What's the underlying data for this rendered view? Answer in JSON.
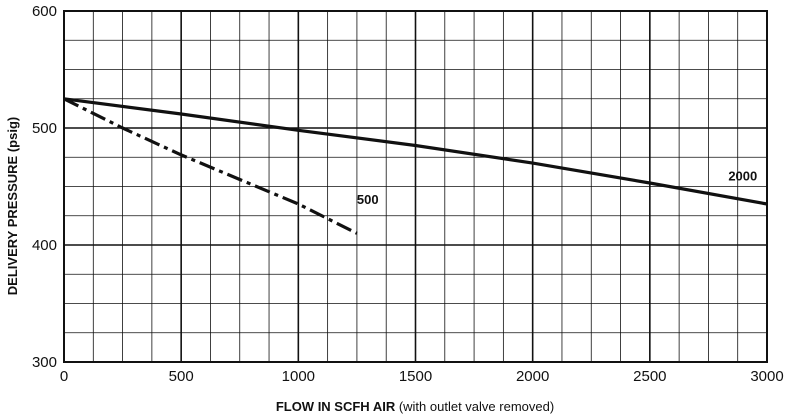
{
  "chart_data": {
    "type": "line",
    "xlabel_bold": "FLOW IN SCFH AIR",
    "xlabel_note": " (with outlet valve removed)",
    "ylabel": "DELIVERY PRESSURE (psig)",
    "xlim": [
      0,
      3000
    ],
    "ylim": [
      300,
      600
    ],
    "x_ticks": [
      0,
      500,
      1000,
      1500,
      2000,
      2500,
      3000
    ],
    "y_ticks": [
      300,
      400,
      500,
      600
    ],
    "x_minor_step": 125,
    "y_minor_step": 25,
    "grid": true,
    "series": [
      {
        "name": "2000",
        "style": "solid",
        "x": [
          0,
          500,
          1000,
          1500,
          2000,
          2500,
          3000
        ],
        "y": [
          525,
          512,
          498,
          485,
          470,
          453,
          435
        ],
        "label_at": [
          2835,
          455
        ]
      },
      {
        "name": "500",
        "style": "dash-dot",
        "x": [
          0,
          250,
          500,
          750,
          1000,
          1150,
          1250
        ],
        "y": [
          525,
          500,
          477,
          456,
          435,
          420,
          410
        ],
        "label_at": [
          1250,
          435
        ]
      }
    ]
  }
}
